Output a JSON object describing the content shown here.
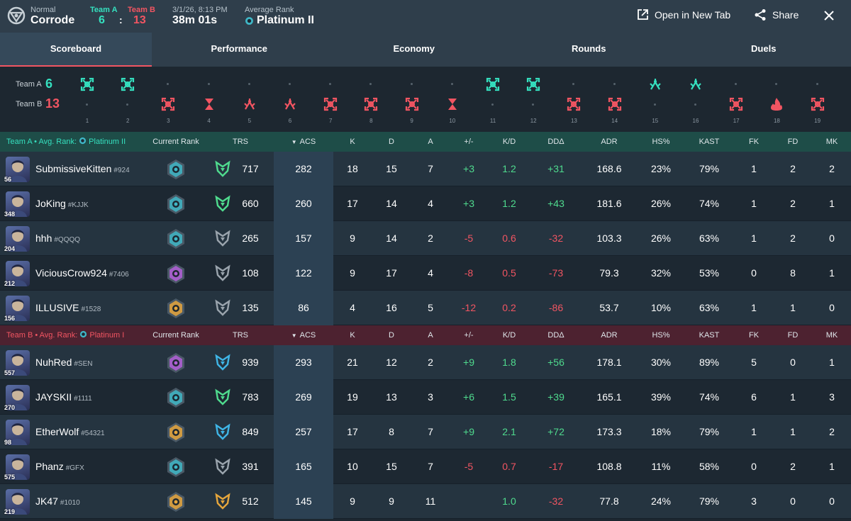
{
  "header": {
    "mode": "Normal",
    "map": "Corrode",
    "team_a_label": "Team A",
    "team_b_label": "Team B",
    "team_a_score": "6",
    "score_sep": ":",
    "team_b_score": "13",
    "date": "3/1/26, 8:13 PM",
    "duration": "38m 01s",
    "avg_rank_label": "Average Rank",
    "avg_rank_value": "Platinum II",
    "open_new_tab": "Open in New Tab",
    "share": "Share"
  },
  "tabs": [
    "Scoreboard",
    "Performance",
    "Economy",
    "Rounds",
    "Duels"
  ],
  "timeline": {
    "team_a_label": "Team A",
    "team_a_score": "6",
    "team_b_label": "Team B",
    "team_b_score": "13",
    "rounds": [
      {
        "num": "1",
        "winner": "A",
        "icon": "elimination-icon"
      },
      {
        "num": "2",
        "winner": "A",
        "icon": "elimination-icon"
      },
      {
        "num": "3",
        "winner": "B",
        "icon": "elimination-icon"
      },
      {
        "num": "4",
        "winner": "B",
        "icon": "time-expired-icon"
      },
      {
        "num": "5",
        "winner": "B",
        "icon": "defuse-icon"
      },
      {
        "num": "6",
        "winner": "B",
        "icon": "defuse-icon"
      },
      {
        "num": "7",
        "winner": "B",
        "icon": "elimination-icon"
      },
      {
        "num": "8",
        "winner": "B",
        "icon": "elimination-icon"
      },
      {
        "num": "9",
        "winner": "B",
        "icon": "elimination-icon"
      },
      {
        "num": "10",
        "winner": "B",
        "icon": "time-expired-icon"
      },
      {
        "num": "11",
        "winner": "A",
        "icon": "elimination-icon"
      },
      {
        "num": "12",
        "winner": "A",
        "icon": "elimination-icon"
      },
      {
        "num": "13",
        "winner": "B",
        "icon": "elimination-icon"
      },
      {
        "num": "14",
        "winner": "B",
        "icon": "elimination-icon"
      },
      {
        "num": "15",
        "winner": "A",
        "icon": "defuse-icon"
      },
      {
        "num": "16",
        "winner": "A",
        "icon": "defuse-icon"
      },
      {
        "num": "17",
        "winner": "B",
        "icon": "elimination-icon"
      },
      {
        "num": "18",
        "winner": "B",
        "icon": "detonate-icon"
      },
      {
        "num": "19",
        "winner": "B",
        "icon": "elimination-icon"
      }
    ]
  },
  "columns": [
    "Current Rank",
    "TRS",
    "ACS",
    "K",
    "D",
    "A",
    "+/-",
    "K/D",
    "DDΔ",
    "ADR",
    "HS%",
    "KAST",
    "FK",
    "FD",
    "MK"
  ],
  "teams": [
    {
      "name": "Team A",
      "avg_rank_label": "Avg. Rank:",
      "avg_rank": "Platinum II",
      "color": "#35e0bf",
      "players": [
        {
          "name": "SubmissiveKitten",
          "tag": "#924",
          "level": "56",
          "rank_color": "#3fb7c7",
          "trs_color": "#4fdb8e",
          "trs": "717",
          "acs": "282",
          "k": "18",
          "d": "15",
          "a": "7",
          "pm": "+3",
          "kd": "1.2",
          "dd": "+31",
          "adr": "168.6",
          "hs": "23%",
          "kast": "79%",
          "fk": "1",
          "fd": "2",
          "mk": "2"
        },
        {
          "name": "JoKing",
          "tag": "#KJJK",
          "level": "348",
          "rank_color": "#3fb7c7",
          "trs_color": "#4fdb8e",
          "trs": "660",
          "acs": "260",
          "k": "17",
          "d": "14",
          "a": "4",
          "pm": "+3",
          "kd": "1.2",
          "dd": "+43",
          "adr": "181.6",
          "hs": "26%",
          "kast": "74%",
          "fk": "1",
          "fd": "2",
          "mk": "1"
        },
        {
          "name": "hhh",
          "tag": "#QQQQ",
          "level": "204",
          "rank_color": "#3fb7c7",
          "trs_color": "#9aa4ad",
          "trs": "265",
          "acs": "157",
          "k": "9",
          "d": "14",
          "a": "2",
          "pm": "-5",
          "kd": "0.6",
          "dd": "-32",
          "adr": "103.3",
          "hs": "26%",
          "kast": "63%",
          "fk": "1",
          "fd": "2",
          "mk": "0"
        },
        {
          "name": "ViciousCrow924",
          "tag": "#7406",
          "level": "212",
          "rank_color": "#b25fd8",
          "trs_color": "#9aa4ad",
          "trs": "108",
          "acs": "122",
          "k": "9",
          "d": "17",
          "a": "4",
          "pm": "-8",
          "kd": "0.5",
          "dd": "-73",
          "adr": "79.3",
          "hs": "32%",
          "kast": "53%",
          "fk": "0",
          "fd": "8",
          "mk": "1"
        },
        {
          "name": "ILLUSIVE",
          "tag": "#1528",
          "level": "156",
          "rank_color": "#e6a63c",
          "trs_color": "#9aa4ad",
          "trs": "135",
          "acs": "86",
          "k": "4",
          "d": "16",
          "a": "5",
          "pm": "-12",
          "kd": "0.2",
          "dd": "-86",
          "adr": "53.7",
          "hs": "10%",
          "kast": "63%",
          "fk": "1",
          "fd": "1",
          "mk": "0"
        }
      ]
    },
    {
      "name": "Team B",
      "avg_rank_label": "Avg. Rank:",
      "avg_rank": "Platinum I",
      "color": "#f25562",
      "players": [
        {
          "name": "NuhRed",
          "tag": "#SEN",
          "level": "557",
          "rank_color": "#b25fd8",
          "trs_color": "#3fb5e6",
          "trs": "939",
          "acs": "293",
          "k": "21",
          "d": "12",
          "a": "2",
          "pm": "+9",
          "kd": "1.8",
          "dd": "+56",
          "adr": "178.1",
          "hs": "30%",
          "kast": "89%",
          "fk": "5",
          "fd": "0",
          "mk": "1"
        },
        {
          "name": "JAYSKII",
          "tag": "#1111",
          "level": "270",
          "rank_color": "#3fb7c7",
          "trs_color": "#4fdb8e",
          "trs": "783",
          "acs": "269",
          "k": "19",
          "d": "13",
          "a": "3",
          "pm": "+6",
          "kd": "1.5",
          "dd": "+39",
          "adr": "165.1",
          "hs": "39%",
          "kast": "74%",
          "fk": "6",
          "fd": "1",
          "mk": "3"
        },
        {
          "name": "EtherWolf",
          "tag": "#54321",
          "level": "98",
          "rank_color": "#e6a63c",
          "trs_color": "#3fb5e6",
          "trs": "849",
          "acs": "257",
          "k": "17",
          "d": "8",
          "a": "7",
          "pm": "+9",
          "kd": "2.1",
          "dd": "+72",
          "adr": "173.3",
          "hs": "18%",
          "kast": "79%",
          "fk": "1",
          "fd": "1",
          "mk": "2"
        },
        {
          "name": "Phanz",
          "tag": "#GFX",
          "level": "575",
          "rank_color": "#3fb7c7",
          "trs_color": "#9aa4ad",
          "trs": "391",
          "acs": "165",
          "k": "10",
          "d": "15",
          "a": "7",
          "pm": "-5",
          "kd": "0.7",
          "dd": "-17",
          "adr": "108.8",
          "hs": "11%",
          "kast": "58%",
          "fk": "0",
          "fd": "2",
          "mk": "1"
        },
        {
          "name": "JK47",
          "tag": "#1010",
          "level": "219",
          "rank_color": "#e6a63c",
          "trs_color": "#e6a63c",
          "trs": "512",
          "acs": "145",
          "k": "9",
          "d": "9",
          "a": "11",
          "pm": "",
          "kd": "1.0",
          "dd": "-32",
          "adr": "77.8",
          "hs": "24%",
          "kast": "79%",
          "fk": "3",
          "fd": "0",
          "mk": "0"
        }
      ]
    }
  ]
}
